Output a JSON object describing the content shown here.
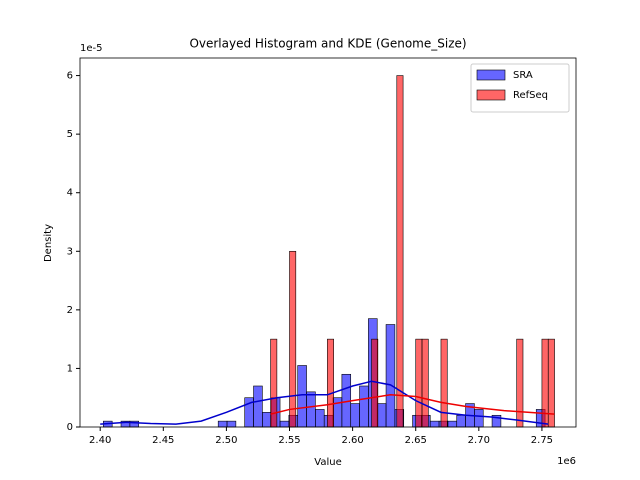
{
  "chart_data": {
    "type": "histogram",
    "title": "Overlayed Histogram and KDE (Genome_Size)",
    "xlabel": "Value",
    "ylabel": "Density",
    "x_offset_label": "1e6",
    "y_offset_label": "1e-5",
    "xlim": [
      2384000,
      2777000
    ],
    "ylim": [
      0,
      6.3e-05
    ],
    "xticks": [
      {
        "value": 2400000,
        "label": "2.40"
      },
      {
        "value": 2450000,
        "label": "2.45"
      },
      {
        "value": 2500000,
        "label": "2.50"
      },
      {
        "value": 2550000,
        "label": "2.55"
      },
      {
        "value": 2600000,
        "label": "2.60"
      },
      {
        "value": 2650000,
        "label": "2.65"
      },
      {
        "value": 2700000,
        "label": "2.70"
      },
      {
        "value": 2750000,
        "label": "2.75"
      }
    ],
    "yticks": [
      0,
      {
        "value": 1e-05,
        "label": "1"
      },
      {
        "value": 2e-05,
        "label": "2"
      },
      {
        "value": 3e-05,
        "label": "3"
      },
      {
        "value": 4e-05,
        "label": "4"
      },
      {
        "value": 5e-05,
        "label": "5"
      },
      {
        "value": 6e-05,
        "label": "6"
      }
    ],
    "legend": "upper right",
    "series": [
      {
        "name": "SRA",
        "color": "#0000ff",
        "line_color": "#0000cc",
        "bins": [
          2402500,
          2409500,
          2416500,
          2423500,
          2430500,
          2437500,
          2444500,
          2451500,
          2458500,
          2465500,
          2472500,
          2479500,
          2486500,
          2493500,
          2500500,
          2507500,
          2514500,
          2521500,
          2528500,
          2535500,
          2542500,
          2549500,
          2556500,
          2563500,
          2570500,
          2577500,
          2584500,
          2591500,
          2598500,
          2605500,
          2612500,
          2619500,
          2626500,
          2633500,
          2640500,
          2647500,
          2654500,
          2661500,
          2668500,
          2675500,
          2682500,
          2689500,
          2696500,
          2703500,
          2710500,
          2717500,
          2724500,
          2731500,
          2738500,
          2745500,
          2752500
        ],
        "values": [
          1e-06,
          0,
          1e-06,
          1e-06,
          0,
          0,
          0,
          0,
          0,
          0,
          0,
          0,
          0,
          1e-06,
          1e-06,
          0,
          5e-06,
          7e-06,
          2.5e-06,
          5e-06,
          1e-06,
          2e-06,
          1.05e-05,
          6e-06,
          3e-06,
          2e-06,
          5e-06,
          9e-06,
          4e-06,
          7e-06,
          1.85e-05,
          4e-06,
          1.75e-05,
          3e-06,
          0,
          2e-06,
          2e-06,
          1e-06,
          1e-06,
          1e-06,
          2e-06,
          4e-06,
          3e-06,
          0,
          2e-06,
          0,
          0,
          0,
          0,
          3e-06
        ],
        "kde_x": [
          2400000,
          2420000,
          2440000,
          2460000,
          2480000,
          2500000,
          2520000,
          2540000,
          2560000,
          2580000,
          2600000,
          2615000,
          2630000,
          2650000,
          2670000,
          2690000,
          2710000,
          2730000,
          2755000
        ],
        "kde_y": [
          5e-07,
          8e-07,
          6e-07,
          5e-07,
          1e-06,
          2.5e-06,
          4.2e-06,
          5e-06,
          5.5e-06,
          5.5e-06,
          7e-06,
          7.8e-06,
          7.2e-06,
          4.5e-06,
          2.5e-06,
          2e-06,
          1.7e-06,
          1.2e-06,
          5e-07
        ]
      },
      {
        "name": "RefSeq",
        "color": "#ff0000",
        "line_color": "#ee0000",
        "bins": [
          2535000,
          2540000,
          2545000,
          2550000,
          2555000,
          2560000,
          2565000,
          2570000,
          2575000,
          2580000,
          2585000,
          2590000,
          2595000,
          2600000,
          2605000,
          2610000,
          2615000,
          2620000,
          2625000,
          2630000,
          2635000,
          2640000,
          2645000,
          2650000,
          2655000,
          2660000,
          2665000,
          2670000,
          2675000,
          2680000,
          2685000,
          2690000,
          2695000,
          2700000,
          2705000,
          2710000,
          2715000,
          2720000,
          2725000,
          2730000,
          2735000,
          2740000,
          2745000,
          2750000,
          2755000,
          2760000
        ],
        "values": [
          1.5e-05,
          0,
          0,
          3e-05,
          0,
          0,
          0,
          0,
          0,
          1.5e-05,
          0,
          0,
          0,
          0,
          0,
          0,
          1.5e-05,
          0,
          0,
          0,
          6e-05,
          0,
          0,
          1.5e-05,
          1.5e-05,
          0,
          0,
          1.5e-05,
          0,
          0,
          0,
          0,
          0,
          0,
          0,
          0,
          0,
          0,
          0,
          1.5e-05,
          0,
          0,
          0,
          1.5e-05,
          1.5e-05
        ],
        "kde_x": [
          2535000,
          2550000,
          2580000,
          2600000,
          2630000,
          2650000,
          2670000,
          2690000,
          2720000,
          2760000
        ],
        "kde_y": [
          2.2e-06,
          3e-06,
          3.8e-06,
          4.5e-06,
          5.5e-06,
          5.2e-06,
          4.2e-06,
          3.5e-06,
          2.8e-06,
          2.2e-06
        ]
      }
    ]
  }
}
